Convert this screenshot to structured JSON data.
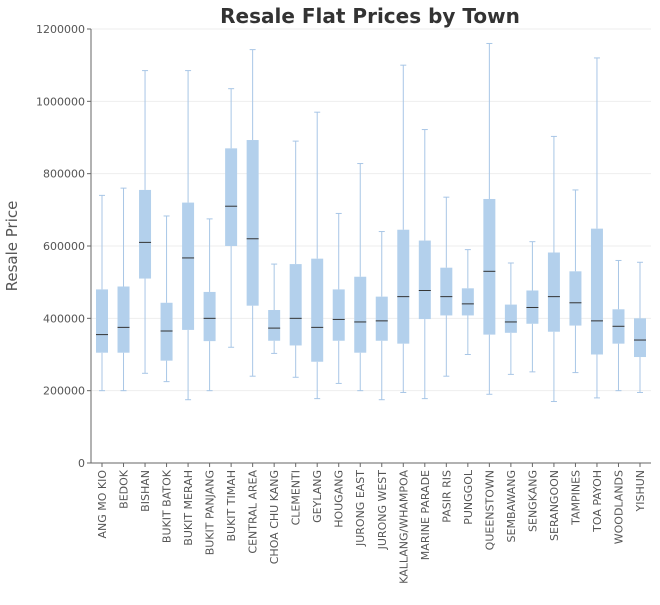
{
  "chart_data": {
    "type": "box",
    "title": "Resale Flat Prices by Town",
    "xlabel": "",
    "ylabel": "Resale Price",
    "ylim": [
      0,
      1200000
    ],
    "yticks": [
      0,
      200000,
      400000,
      600000,
      800000,
      1000000,
      1200000
    ],
    "grid": true,
    "colors": {
      "box": "#b3d0ec",
      "whisker": "#a8c6e6",
      "median": "#333333",
      "axis": "#666666",
      "grid": "#eeeeee"
    },
    "categories": [
      "ANG MO KIO",
      "BEDOK",
      "BISHAN",
      "BUKIT BATOK",
      "BUKIT MERAH",
      "BUKIT PANJANG",
      "BUKIT TIMAH",
      "CENTRAL AREA",
      "CHOA CHU KANG",
      "CLEMENTI",
      "GEYLANG",
      "HOUGANG",
      "JURONG EAST",
      "JURONG WEST",
      "KALLANG/WHAMPOA",
      "MARINE PARADE",
      "PASIR RIS",
      "PUNGGOL",
      "QUEENSTOWN",
      "SEMBAWANG",
      "SENGKANG",
      "SERANGOON",
      "TAMPINES",
      "TOA PAYOH",
      "WOODLANDS",
      "YISHUN"
    ],
    "boxes": [
      {
        "min": 200000,
        "q1": 305000,
        "median": 355000,
        "q3": 480000,
        "max": 740000
      },
      {
        "min": 200000,
        "q1": 305000,
        "median": 375000,
        "q3": 488000,
        "max": 760000
      },
      {
        "min": 248000,
        "q1": 510000,
        "median": 610000,
        "q3": 755000,
        "max": 1085000
      },
      {
        "min": 225000,
        "q1": 283000,
        "median": 365000,
        "q3": 443000,
        "max": 683000
      },
      {
        "min": 175000,
        "q1": 368000,
        "median": 567000,
        "q3": 720000,
        "max": 1085000
      },
      {
        "min": 200000,
        "q1": 337000,
        "median": 400000,
        "q3": 473000,
        "max": 675000
      },
      {
        "min": 320000,
        "q1": 600000,
        "median": 710000,
        "q3": 870000,
        "max": 1035000
      },
      {
        "min": 240000,
        "q1": 435000,
        "median": 620000,
        "q3": 893000,
        "max": 1143000
      },
      {
        "min": 303000,
        "q1": 338000,
        "median": 373000,
        "q3": 423000,
        "max": 550000
      },
      {
        "min": 237000,
        "q1": 325000,
        "median": 400000,
        "q3": 550000,
        "max": 890000
      },
      {
        "min": 178000,
        "q1": 280000,
        "median": 375000,
        "q3": 565000,
        "max": 970000
      },
      {
        "min": 220000,
        "q1": 338000,
        "median": 397000,
        "q3": 480000,
        "max": 690000
      },
      {
        "min": 200000,
        "q1": 305000,
        "median": 390000,
        "q3": 515000,
        "max": 828000
      },
      {
        "min": 175000,
        "q1": 338000,
        "median": 393000,
        "q3": 460000,
        "max": 640000
      },
      {
        "min": 195000,
        "q1": 330000,
        "median": 460000,
        "q3": 645000,
        "max": 1100000
      },
      {
        "min": 178000,
        "q1": 398000,
        "median": 477000,
        "q3": 615000,
        "max": 922000
      },
      {
        "min": 240000,
        "q1": 408000,
        "median": 460000,
        "q3": 540000,
        "max": 735000
      },
      {
        "min": 300000,
        "q1": 408000,
        "median": 440000,
        "q3": 483000,
        "max": 590000
      },
      {
        "min": 190000,
        "q1": 355000,
        "median": 530000,
        "q3": 730000,
        "max": 1160000
      },
      {
        "min": 245000,
        "q1": 360000,
        "median": 390000,
        "q3": 438000,
        "max": 553000
      },
      {
        "min": 252000,
        "q1": 385000,
        "median": 430000,
        "q3": 477000,
        "max": 612000
      },
      {
        "min": 170000,
        "q1": 363000,
        "median": 460000,
        "q3": 582000,
        "max": 903000
      },
      {
        "min": 250000,
        "q1": 380000,
        "median": 443000,
        "q3": 530000,
        "max": 755000
      },
      {
        "min": 180000,
        "q1": 300000,
        "median": 393000,
        "q3": 648000,
        "max": 1120000
      },
      {
        "min": 200000,
        "q1": 330000,
        "median": 378000,
        "q3": 425000,
        "max": 560000
      },
      {
        "min": 195000,
        "q1": 293000,
        "median": 340000,
        "q3": 400000,
        "max": 555000
      }
    ]
  }
}
